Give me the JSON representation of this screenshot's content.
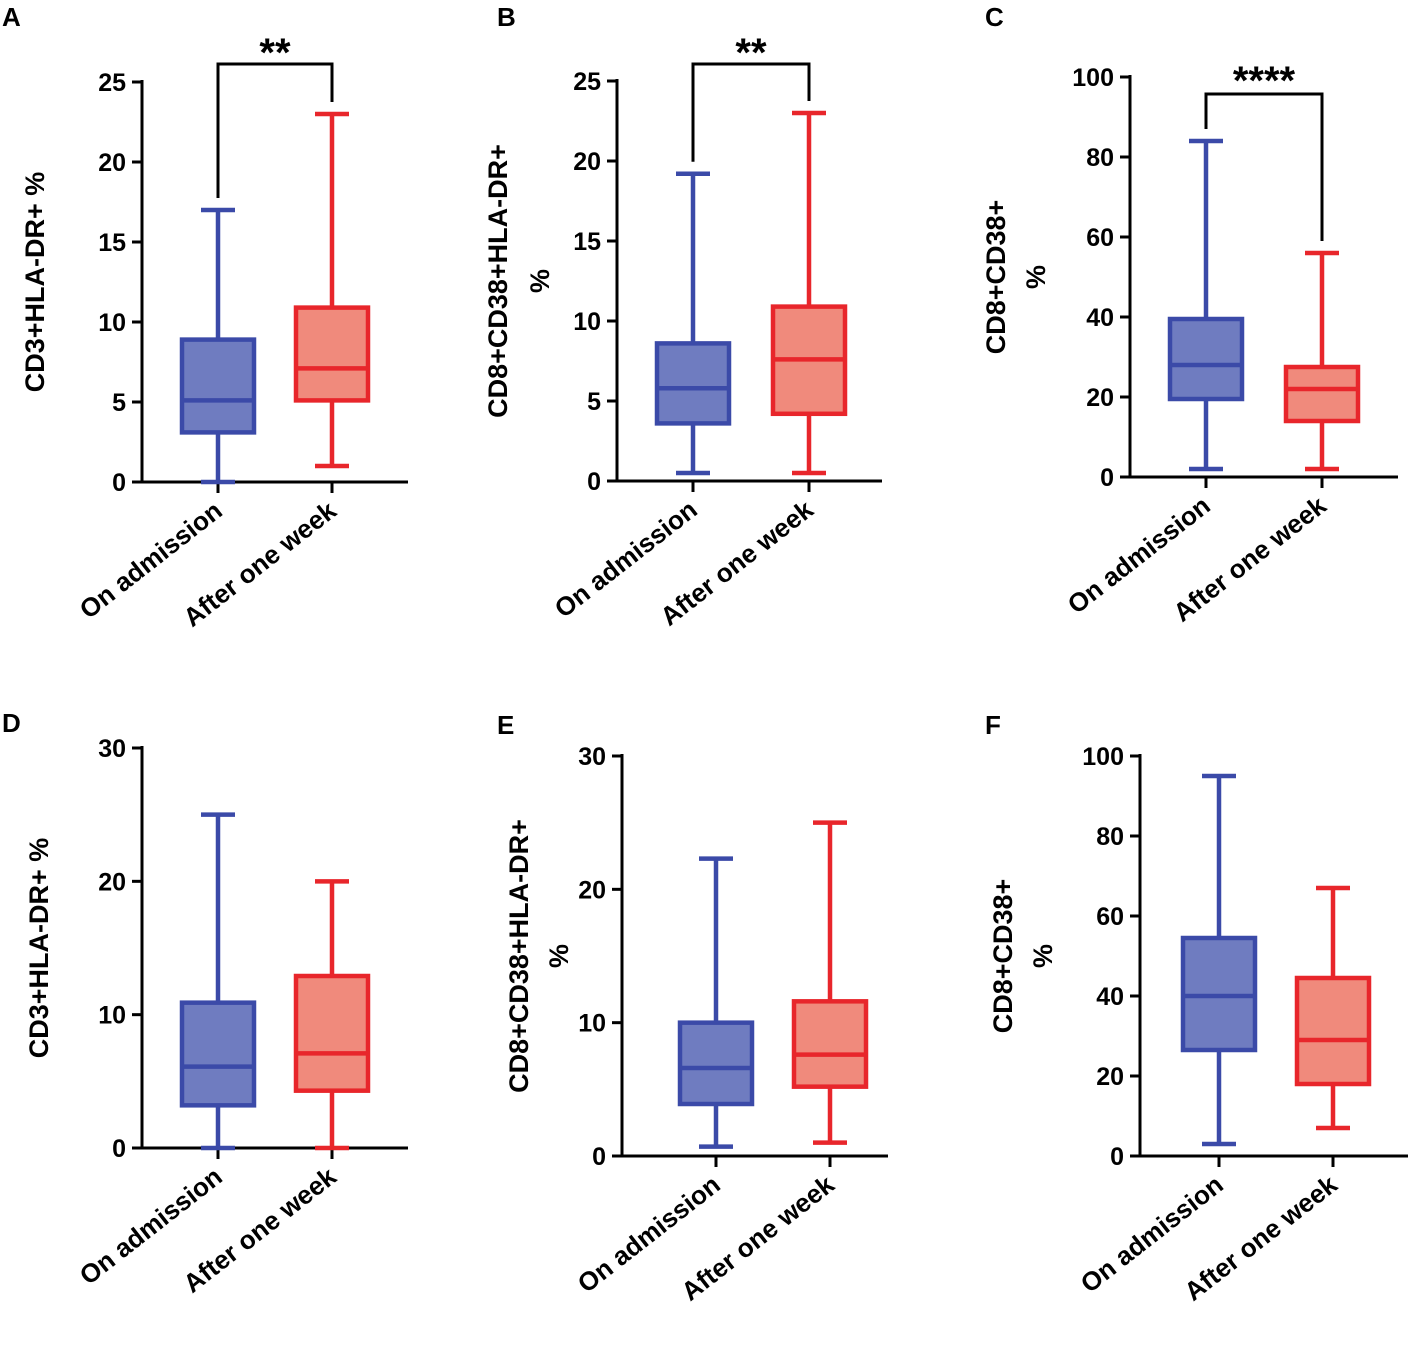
{
  "figure": {
    "categories": [
      "On admission",
      "After one week"
    ],
    "colors": {
      "admission_stroke": "#3b4aa8",
      "admission_fill": "#6f7cc0",
      "week_stroke": "#e8262b",
      "week_fill": "#f08a7c",
      "axis": "#000000"
    }
  },
  "chart_data": [
    {
      "panel": "A",
      "type": "box",
      "ylabel_lines": [
        "CD3+HLA-DR+ %"
      ],
      "ylim": [
        0,
        25
      ],
      "yticks": [
        0,
        5,
        10,
        15,
        20,
        25
      ],
      "categories": [
        "On admission",
        "After one week"
      ],
      "series": [
        {
          "name": "On admission",
          "min": 0,
          "q1": 3.1,
          "median": 5.1,
          "q3": 8.9,
          "max": 17
        },
        {
          "name": "After one week",
          "min": 1,
          "q1": 5.1,
          "median": 7.1,
          "q3": 10.9,
          "max": 23
        }
      ],
      "significance": "**"
    },
    {
      "panel": "B",
      "type": "box",
      "ylabel_lines": [
        "CD8+CD38+HLA-DR+",
        "%"
      ],
      "ylim": [
        0,
        25
      ],
      "yticks": [
        0,
        5,
        10,
        15,
        20,
        25
      ],
      "categories": [
        "On admission",
        "After one week"
      ],
      "series": [
        {
          "name": "On admission",
          "min": 0.5,
          "q1": 3.6,
          "median": 5.8,
          "q3": 8.6,
          "max": 19.2
        },
        {
          "name": "After one week",
          "min": 0.5,
          "q1": 4.2,
          "median": 7.6,
          "q3": 10.9,
          "max": 23
        }
      ],
      "significance": "**"
    },
    {
      "panel": "C",
      "type": "box",
      "ylabel_lines": [
        "CD8+CD38+",
        "%"
      ],
      "ylim": [
        0,
        100
      ],
      "yticks": [
        0,
        20,
        40,
        60,
        80,
        100
      ],
      "categories": [
        "On admission",
        "After one week"
      ],
      "series": [
        {
          "name": "On admission",
          "min": 2,
          "q1": 19.5,
          "median": 28,
          "q3": 39.5,
          "max": 84
        },
        {
          "name": "After one week",
          "min": 2,
          "q1": 14,
          "median": 22,
          "q3": 27.5,
          "max": 56
        }
      ],
      "significance": "****"
    },
    {
      "panel": "D",
      "type": "box",
      "ylabel_lines": [
        "CD3+HLA-DR+ %"
      ],
      "ylim": [
        0,
        30
      ],
      "yticks": [
        0,
        10,
        20,
        30
      ],
      "categories": [
        "On admission",
        "After one week"
      ],
      "series": [
        {
          "name": "On admission",
          "min": 0,
          "q1": 3.2,
          "median": 6.1,
          "q3": 10.9,
          "max": 25
        },
        {
          "name": "After one week",
          "min": 0,
          "q1": 4.3,
          "median": 7.1,
          "q3": 12.9,
          "max": 20
        }
      ],
      "significance": ""
    },
    {
      "panel": "E",
      "type": "box",
      "ylabel_lines": [
        "CD8+CD38+HLA-DR+",
        "%"
      ],
      "ylim": [
        0,
        30
      ],
      "yticks": [
        0,
        10,
        20,
        30
      ],
      "categories": [
        "On admission",
        "After one week"
      ],
      "series": [
        {
          "name": "On admission",
          "min": 0.7,
          "q1": 3.9,
          "median": 6.6,
          "q3": 10,
          "max": 22.3
        },
        {
          "name": "After one week",
          "min": 1,
          "q1": 5.2,
          "median": 7.6,
          "q3": 11.6,
          "max": 25
        }
      ],
      "significance": ""
    },
    {
      "panel": "F",
      "type": "box",
      "ylabel_lines": [
        "CD8+CD38+",
        "%"
      ],
      "ylim": [
        0,
        100
      ],
      "yticks": [
        0,
        20,
        40,
        60,
        80,
        100
      ],
      "categories": [
        "On admission",
        "After one week"
      ],
      "series": [
        {
          "name": "On admission",
          "min": 3,
          "q1": 26.5,
          "median": 40,
          "q3": 54.5,
          "max": 95
        },
        {
          "name": "After one week",
          "min": 7,
          "q1": 18,
          "median": 29,
          "q3": 44.5,
          "max": 67
        }
      ],
      "significance": ""
    }
  ]
}
